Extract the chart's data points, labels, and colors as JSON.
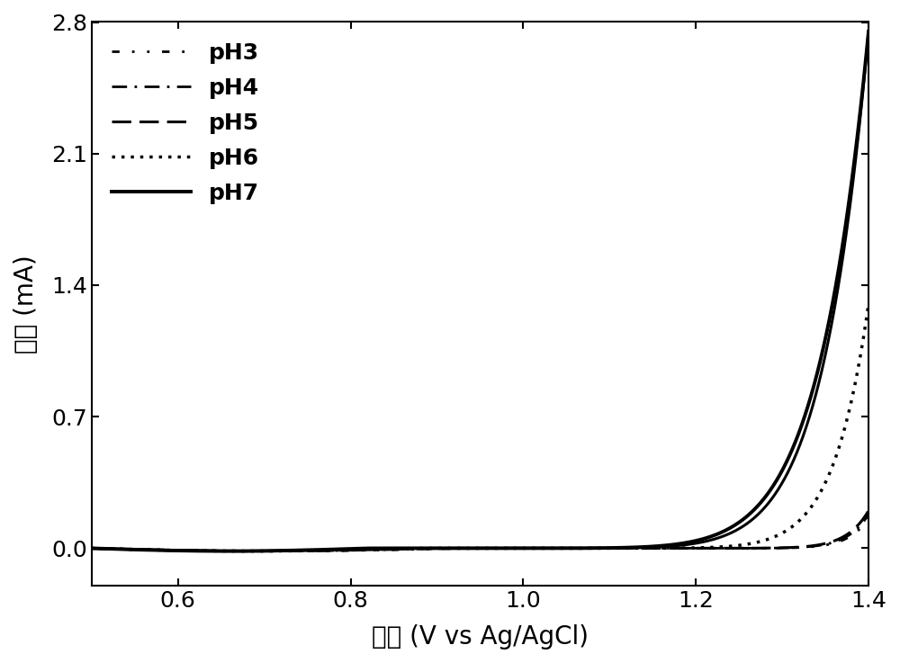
{
  "xlabel": "电位 (V vs Ag/AgCl)",
  "ylabel": "电流 (mA)",
  "xlim": [
    0.5,
    1.4
  ],
  "ylim": [
    -0.2,
    2.8
  ],
  "xticks": [
    0.6,
    0.8,
    1.0,
    1.2,
    1.4
  ],
  "yticks": [
    0.0,
    0.7,
    1.4,
    2.1,
    2.8
  ],
  "series": [
    {
      "label": "pH3",
      "linestyle_name": "dashdotdotted",
      "linewidth": 2.0,
      "color": "#000000",
      "onset": 0.93,
      "scale": 0.16,
      "exponent": 20
    },
    {
      "label": "pH4",
      "linestyle_name": "dashdot",
      "linewidth": 2.0,
      "color": "#000000",
      "onset": 0.91,
      "scale": 0.18,
      "exponent": 20
    },
    {
      "label": "pH5",
      "linestyle_name": "dashed",
      "linewidth": 2.2,
      "color": "#000000",
      "onset": 0.89,
      "scale": 0.2,
      "exponent": 20
    },
    {
      "label": "pH6",
      "linestyle_name": "dotted",
      "linewidth": 2.5,
      "color": "#000000",
      "onset": 0.88,
      "scale": 1.3,
      "exponent": 13
    },
    {
      "label": "pH7",
      "linestyle_name": "solid",
      "linewidth": 2.8,
      "color": "#000000",
      "onset": 0.82,
      "scale": 2.75,
      "exponent": 10
    }
  ],
  "second_solid": {
    "onset": 0.84,
    "scale": 2.75,
    "exponent": 10.5,
    "linewidth": 2.2,
    "color": "#000000"
  },
  "legend_loc": "upper left",
  "legend_fontsize": 18,
  "tick_fontsize": 18,
  "label_fontsize": 20,
  "figure_facecolor": "#ffffff",
  "axes_facecolor": "#ffffff"
}
